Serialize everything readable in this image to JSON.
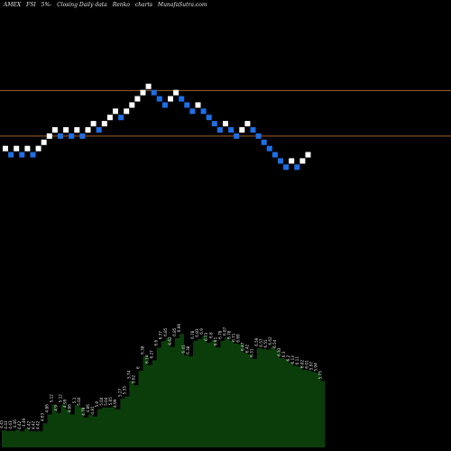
{
  "header": {
    "exchange": "AMEX",
    "symbol": "FSI",
    "change": "5%",
    "change_sign": "-",
    "chart_desc": "Closing Daily data",
    "chart_type_label": "Renko",
    "charts_label": "charts",
    "site": "MunafaSutra.com"
  },
  "colors": {
    "background": "#000000",
    "up_brick": "#ffffff",
    "down_brick": "#1e6fe6",
    "reference_line": "#a0622a",
    "volume_fill": "#0b3d0b"
  },
  "chart_data": [
    {
      "type": "renko",
      "bricks": [
        {
          "dir": "up",
          "y": 4.94
        },
        {
          "dir": "down",
          "y": 4.88
        },
        {
          "dir": "up",
          "y": 4.94
        },
        {
          "dir": "down",
          "y": 4.88
        },
        {
          "dir": "up",
          "y": 4.94
        },
        {
          "dir": "down",
          "y": 4.88
        },
        {
          "dir": "up",
          "y": 4.94
        },
        {
          "dir": "up",
          "y": 5.0
        },
        {
          "dir": "up",
          "y": 5.06
        },
        {
          "dir": "up",
          "y": 5.12
        },
        {
          "dir": "down",
          "y": 5.06
        },
        {
          "dir": "up",
          "y": 5.12
        },
        {
          "dir": "down",
          "y": 5.06
        },
        {
          "dir": "up",
          "y": 5.12
        },
        {
          "dir": "down",
          "y": 5.06
        },
        {
          "dir": "up",
          "y": 5.12
        },
        {
          "dir": "up",
          "y": 5.18
        },
        {
          "dir": "down",
          "y": 5.12
        },
        {
          "dir": "up",
          "y": 5.18
        },
        {
          "dir": "up",
          "y": 5.24
        },
        {
          "dir": "up",
          "y": 5.3
        },
        {
          "dir": "down",
          "y": 5.24
        },
        {
          "dir": "up",
          "y": 5.3
        },
        {
          "dir": "up",
          "y": 5.36
        },
        {
          "dir": "up",
          "y": 5.42
        },
        {
          "dir": "up",
          "y": 5.48
        },
        {
          "dir": "up",
          "y": 5.54
        },
        {
          "dir": "down",
          "y": 5.48
        },
        {
          "dir": "down",
          "y": 5.42
        },
        {
          "dir": "down",
          "y": 5.36
        },
        {
          "dir": "up",
          "y": 5.42
        },
        {
          "dir": "up",
          "y": 5.48
        },
        {
          "dir": "down",
          "y": 5.42
        },
        {
          "dir": "down",
          "y": 5.36
        },
        {
          "dir": "down",
          "y": 5.3
        },
        {
          "dir": "up",
          "y": 5.36
        },
        {
          "dir": "down",
          "y": 5.3
        },
        {
          "dir": "down",
          "y": 5.24
        },
        {
          "dir": "down",
          "y": 5.18
        },
        {
          "dir": "down",
          "y": 5.12
        },
        {
          "dir": "up",
          "y": 5.18
        },
        {
          "dir": "down",
          "y": 5.12
        },
        {
          "dir": "down",
          "y": 5.06
        },
        {
          "dir": "up",
          "y": 5.12
        },
        {
          "dir": "up",
          "y": 5.18
        },
        {
          "dir": "down",
          "y": 5.12
        },
        {
          "dir": "down",
          "y": 5.06
        },
        {
          "dir": "down",
          "y": 5.0
        },
        {
          "dir": "down",
          "y": 4.94
        },
        {
          "dir": "down",
          "y": 4.88
        },
        {
          "dir": "down",
          "y": 4.82
        },
        {
          "dir": "down",
          "y": 4.76
        },
        {
          "dir": "up",
          "y": 4.82
        },
        {
          "dir": "down",
          "y": 4.76
        },
        {
          "dir": "up",
          "y": 4.82
        },
        {
          "dir": "up",
          "y": 4.88
        }
      ],
      "reference_lines": [
        5.5,
        5.06
      ],
      "ylim": [
        3.5,
        6.2
      ]
    },
    {
      "type": "area",
      "series": [
        {
          "values": [
            4.45,
            4.43,
            4.43,
            4.46,
            4.42,
            4.49,
            4.42,
            4.42,
            4.42,
            4.63,
            4.86,
            5.12,
            4.9,
            5.12,
            4.99,
            4.86,
            5.1,
            5.04,
            4.78,
            4.86,
            4.81,
            5.0,
            5.04,
            5.04,
            5.05,
            4.99,
            5.27,
            5.33,
            5.74,
            5.62,
            6.0,
            6.38,
            6.14,
            6.27,
            6.6,
            6.77,
            6.85,
            6.62,
            6.85,
            6.96,
            6.41,
            6.38,
            6.78,
            6.83,
            6.9,
            6.73,
            6.8,
            6.61,
            6.78,
            6.87,
            6.78,
            6.71,
            6.69,
            6.47,
            6.42,
            6.31,
            6.59,
            6.57,
            6.55,
            6.62,
            6.54,
            6.33,
            6.3,
            6.2,
            6.13,
            6.11,
            6.02,
            6.01,
            5.97,
            5.94,
            5.73
          ]
        }
      ],
      "labels": [
        "4.45",
        "4.43",
        "4.43",
        "4.46",
        "4.42",
        "4.49",
        "4.42",
        "4.42",
        "4.42",
        "4.63",
        "4.86",
        "5.12",
        "4.9",
        "5.12",
        "4.99",
        "4.86",
        "5.1",
        "5.04",
        "4.78",
        "4.86",
        "4.81",
        "5.0",
        "5.04",
        "5.04",
        "5.05",
        "4.99",
        "5.27",
        "5.33",
        "5.74",
        "5.62",
        "6",
        "6.38",
        "6.14",
        "6.27",
        "6.6",
        "6.77",
        "6.85",
        "6.62",
        "6.85",
        "6.96",
        "6.41",
        "6.38",
        "6.78",
        "6.83",
        "6.9",
        "6.73",
        "6.8",
        "6.61",
        "6.78",
        "6.87",
        "6.78",
        "6.71",
        "6.69",
        "6.47",
        "6.42",
        "6.31",
        "6.59",
        "6.57",
        "6.55",
        "6.62",
        "6.54",
        "6.33",
        "6.3",
        "6.2",
        "6.13",
        "6.11",
        "6.02",
        "6.01",
        "5.97",
        "5.94",
        "5.73"
      ]
    }
  ]
}
